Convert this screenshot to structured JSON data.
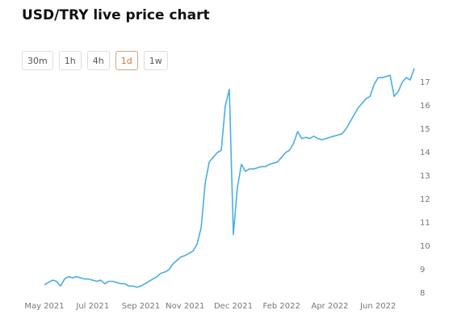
{
  "header": {
    "title": "USD/TRY live price chart"
  },
  "timeframes": {
    "options": [
      "30m",
      "1h",
      "4h",
      "1d",
      "1w"
    ],
    "selected_index": 3
  },
  "chart_data": {
    "type": "line",
    "color": "#4aaee3",
    "values": [
      8.35,
      8.45,
      8.55,
      8.5,
      8.3,
      8.6,
      8.7,
      8.65,
      8.7,
      8.65,
      8.6,
      8.6,
      8.55,
      8.5,
      8.55,
      8.4,
      8.5,
      8.5,
      8.45,
      8.4,
      8.4,
      8.3,
      8.3,
      8.25,
      8.3,
      8.4,
      8.5,
      8.6,
      8.7,
      8.85,
      8.9,
      9.0,
      9.25,
      9.4,
      9.55,
      9.6,
      9.7,
      9.8,
      10.1,
      10.8,
      12.7,
      13.6,
      13.8,
      14.0,
      14.1,
      16.0,
      16.7,
      10.5,
      12.5,
      13.5,
      13.2,
      13.3,
      13.3,
      13.35,
      13.4,
      13.4,
      13.5,
      13.55,
      13.6,
      13.8,
      14.0,
      14.1,
      14.4,
      14.9,
      14.6,
      14.65,
      14.6,
      14.7,
      14.6,
      14.55,
      14.6,
      14.65,
      14.7,
      14.75,
      14.8,
      15.0,
      15.3,
      15.6,
      15.9,
      16.1,
      16.3,
      16.4,
      16.9,
      17.2,
      17.2,
      17.25,
      17.3,
      16.4,
      16.6,
      17.0,
      17.2,
      17.1,
      17.6
    ],
    "xlim": [
      0,
      92
    ],
    "xticks": [
      {
        "value": 0,
        "label": "May 2021"
      },
      {
        "value": 12,
        "label": "Jul 2021"
      },
      {
        "value": 24,
        "label": "Sep 2021"
      },
      {
        "value": 35,
        "label": "Nov 2021"
      },
      {
        "value": 47,
        "label": "Dec 2021"
      },
      {
        "value": 59,
        "label": "Feb 2022"
      },
      {
        "value": 71,
        "label": "Apr 2022"
      },
      {
        "value": 83,
        "label": "Jun 2022"
      }
    ],
    "ylim": [
      8,
      18
    ],
    "yticks": [
      8,
      9,
      10,
      11,
      12,
      13,
      14,
      15,
      16,
      17
    ]
  }
}
